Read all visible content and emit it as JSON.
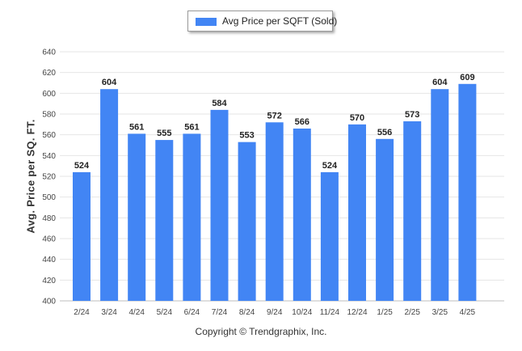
{
  "chart_data": {
    "type": "bar",
    "categories": [
      "2/24",
      "3/24",
      "4/24",
      "5/24",
      "6/24",
      "7/24",
      "8/24",
      "9/24",
      "10/24",
      "11/24",
      "12/24",
      "1/25",
      "2/25",
      "3/25",
      "4/25"
    ],
    "series": [
      {
        "name": "Avg Price per SQFT (Sold)",
        "values": [
          524,
          604,
          561,
          555,
          561,
          584,
          553,
          572,
          566,
          524,
          570,
          556,
          573,
          604,
          609
        ]
      }
    ],
    "ylabel": "Avg. Price per SQ. FT.",
    "xlabel": "",
    "ylim": [
      400,
      640
    ],
    "yticks": [
      400,
      420,
      440,
      460,
      480,
      500,
      520,
      540,
      560,
      580,
      600,
      620,
      640
    ],
    "grid": true,
    "legend_position": "top-center",
    "data_labels": true,
    "bar_color": "#4285f4"
  },
  "footer": {
    "copyright": "Copyright © Trendgraphix, Inc."
  }
}
